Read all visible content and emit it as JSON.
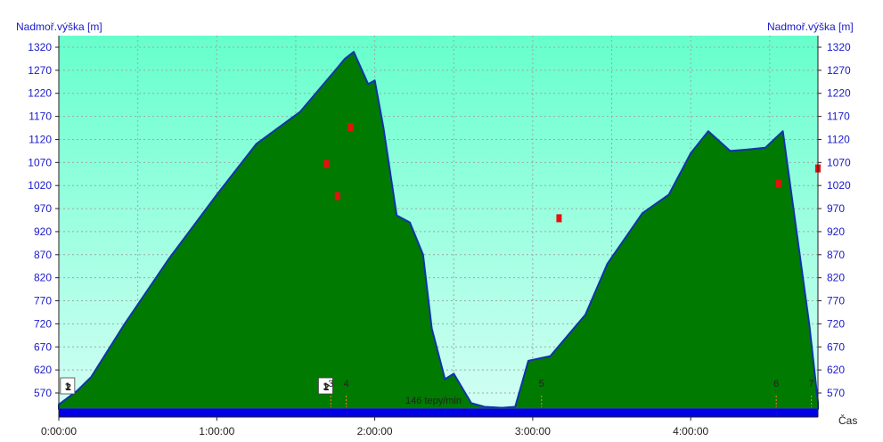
{
  "chart_data": {
    "type": "area",
    "ylabel_left": "Nadmoř.výška [m]",
    "ylabel_right": "Nadmoř.výška [m]",
    "xlabel": "Čas",
    "y_ticks": [
      570,
      620,
      670,
      720,
      770,
      820,
      870,
      920,
      970,
      1020,
      1070,
      1120,
      1170,
      1220,
      1270,
      1320
    ],
    "ylim": [
      528,
      1340
    ],
    "x_ticks": [
      "0:00:00",
      "1:00:00",
      "2:00:00",
      "3:00:00",
      "4:00:00"
    ],
    "xlim_seconds": [
      0,
      17300
    ],
    "grid": true,
    "colors": {
      "fill": "#007a00",
      "outline": "#1133aa",
      "bg_top": "#66ffcc",
      "bg_bottom": "#d4fff4",
      "bar": "#0000e6",
      "marker": "#e61010"
    },
    "elevation": {
      "name": "Nadmoř.výška",
      "t": [
        0,
        420,
        740,
        1500,
        2500,
        3600,
        4500,
        5500,
        6300,
        6520,
        6720,
        6900,
        7050,
        7200,
        7400,
        7700,
        8000,
        8300,
        8500,
        8800,
        9000,
        9400,
        9700,
        10100,
        10400,
        10700,
        11200,
        12000,
        12500,
        13300,
        13900,
        14400,
        14800,
        15300,
        15700,
        16100,
        16500,
        17100,
        17300
      ],
      "elev": [
        545,
        575,
        605,
        720,
        860,
        1000,
        1110,
        1180,
        1270,
        1295,
        1310,
        1272,
        1240,
        1248,
        1145,
        955,
        940,
        870,
        710,
        600,
        612,
        548,
        540,
        538,
        540,
        640,
        650,
        740,
        850,
        960,
        1000,
        1090,
        1138,
        1095,
        1098,
        1102,
        1138,
        720,
        550
      ]
    },
    "hr_bar": {
      "label": "146 tepy/min",
      "value": 146
    },
    "laps": [
      {
        "t": 200,
        "label": "1",
        "overlap": "2"
      },
      {
        "t": 6080,
        "label": "1",
        "overlap": "2"
      },
      {
        "t": 6200,
        "label": "3"
      },
      {
        "t": 6550,
        "label": "4"
      },
      {
        "t": 11000,
        "label": "5"
      },
      {
        "t": 16350,
        "label": "6"
      },
      {
        "t": 17150,
        "label": "7"
      }
    ],
    "markers": [
      {
        "t": 6100,
        "elev": 1068
      },
      {
        "t": 6350,
        "elev": 998
      },
      {
        "t": 6650,
        "elev": 1148
      },
      {
        "t": 11400,
        "elev": 950
      },
      {
        "t": 16400,
        "elev": 1025
      },
      {
        "t": 17300,
        "elev": 1058
      }
    ]
  }
}
